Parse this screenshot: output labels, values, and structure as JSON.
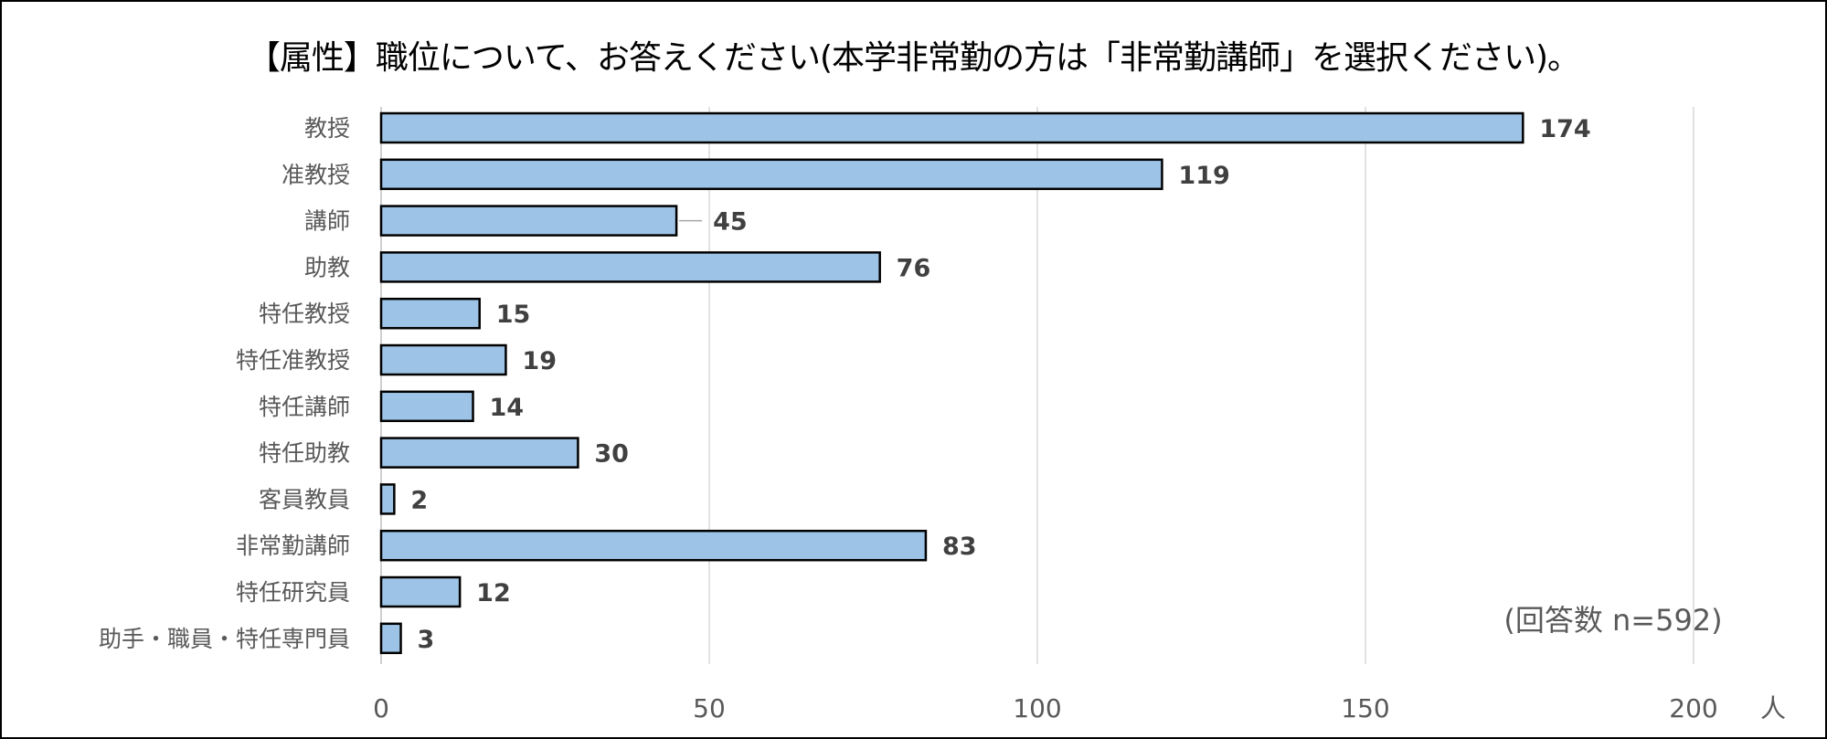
{
  "chart_data": {
    "type": "bar",
    "orientation": "horizontal",
    "title": "【属性】職位について、お答えください(本学非常勤の方は「非常勤講師」を選択ください)。",
    "categories": [
      "教授",
      "准教授",
      "講師",
      "助教",
      "特任教授",
      "特任准教授",
      "特任講師",
      "特任助教",
      "客員教員",
      "非常勤講師",
      "特任研究員",
      "助手・職員・特任専門員"
    ],
    "values": [
      174,
      119,
      45,
      76,
      15,
      19,
      14,
      30,
      2,
      83,
      12,
      3
    ],
    "xlabel": "人",
    "ylabel": "",
    "xlim": [
      0,
      200
    ],
    "xticks": [
      "0",
      "50",
      "100",
      "150",
      "200"
    ],
    "grid": true,
    "annotation": "(回答数 n=592)",
    "bar_color": "#9DC3E6",
    "bar_edge_color": "#000000"
  }
}
